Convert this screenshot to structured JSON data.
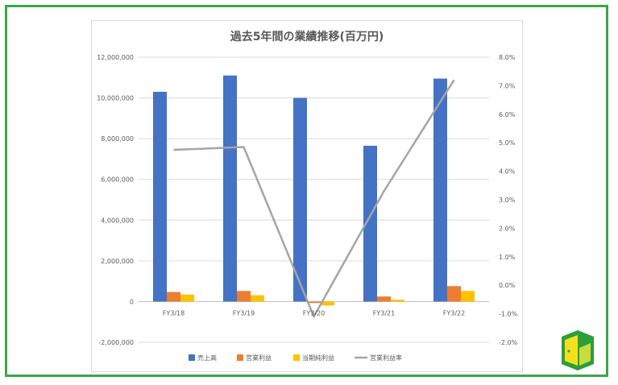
{
  "chart_data": {
    "type": "bar",
    "title": "過去5年間の業績推移(百万円)",
    "categories": [
      "FY3/18",
      "FY3/19",
      "FY3/20",
      "FY3/21",
      "FY3/22"
    ],
    "series": [
      {
        "name": "売上高",
        "kind": "bar",
        "axis": "left",
        "color": "#4472c4",
        "values": [
          10300000,
          11100000,
          10000000,
          7650000,
          10950000
        ]
      },
      {
        "name": "営業利益",
        "kind": "bar",
        "axis": "left",
        "color": "#ed7d31",
        "values": [
          470000,
          520000,
          -70000,
          250000,
          760000
        ]
      },
      {
        "name": "当期純利益",
        "kind": "bar",
        "axis": "left",
        "color": "#ffc000",
        "values": [
          340000,
          310000,
          -190000,
          90000,
          520000
        ]
      },
      {
        "name": "営業利益率",
        "kind": "line",
        "axis": "right",
        "color": "#a5a5a5",
        "values": [
          4.75,
          4.85,
          -1.1,
          3.3,
          7.2
        ]
      }
    ],
    "ylim": [
      -2000000,
      12000000
    ],
    "yticks": [
      "12,000,000",
      "10,000,000",
      "8,000,000",
      "6,000,000",
      "4,000,000",
      "2,000,000",
      "0",
      "-2,000,000"
    ],
    "y2lim": [
      -2.0,
      8.0
    ],
    "y2ticks": [
      "8.0%",
      "7.0%",
      "6.0%",
      "5.0%",
      "4.0%",
      "3.0%",
      "2.0%",
      "1.0%",
      "0.0%",
      "-1.0%",
      "-2.0%"
    ],
    "grid": true,
    "legend_position": "bottom"
  },
  "colors": {
    "frame": "#3aa845",
    "logo_green": "#2e9e3a",
    "logo_yellow": "#f5e11b"
  },
  "logo": {
    "icon": "beginner-mark-icon"
  }
}
